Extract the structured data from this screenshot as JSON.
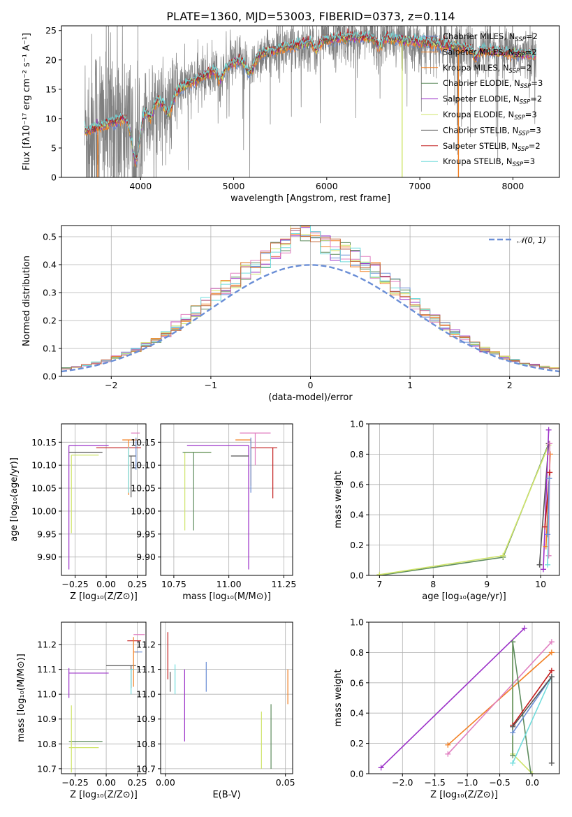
{
  "page": {
    "title": "PLATE=1360, MJD=53003, FIBERID=0373, z=0.114"
  },
  "colors": {
    "blue": "#6a8ed6",
    "orange": "#f28023",
    "gray": "#7f7f7f",
    "purple": "#9b30c8",
    "yellow": "#cfe46a",
    "pink": "#e07fc0",
    "cyan": "#70dcdc",
    "red": "#c21a1a",
    "green": "#5e8c5e",
    "darkgray": "#555555",
    "olive": "#b5d66b",
    "brown": "#c46a3b"
  },
  "chart_data": [
    {
      "id": "spectrum",
      "type": "line",
      "xlabel": "wavelength [Angstrom, rest frame]",
      "ylabel": "Flux [fλ10⁻¹⁷ erg cm⁻² s⁻¹ A⁻¹]",
      "xlim": [
        3150,
        8500
      ],
      "ylim": [
        0,
        25.8
      ],
      "xticks": [
        4000,
        5000,
        6000,
        7000,
        8000
      ],
      "yticks": [
        0,
        5,
        10,
        15,
        20,
        25
      ],
      "legend_position": "top-right",
      "data_range": [
        3400,
        8250
      ],
      "legend": [
        {
          "base": "Chabrier MILES, N",
          "sub": "SSP",
          "tail": "=2",
          "color": "#6a8ed6"
        },
        {
          "base": "Salpeter MILES, N",
          "sub": "SSP",
          "tail": "=2",
          "color": "#f28023"
        },
        {
          "base": "Kroupa MILES, N",
          "sub": "SSP",
          "tail": "=2",
          "color": "#f28023"
        },
        {
          "base": "Chabrier ELODIE, N",
          "sub": "SSP",
          "tail": "=3",
          "color": "#5e8c5e"
        },
        {
          "base": "Salpeter ELODIE, N",
          "sub": "SSP",
          "tail": "=2",
          "color": "#9b30c8"
        },
        {
          "base": "Kroupa ELODIE, N",
          "sub": "SSP",
          "tail": "=3",
          "color": "#cfe46a"
        },
        {
          "base": "Chabrier STELIB, N",
          "sub": "SSP",
          "tail": "=3",
          "color": "#555555"
        },
        {
          "base": "Salpeter STELIB, N",
          "sub": "SSP",
          "tail": "=2",
          "color": "#c21a1a"
        },
        {
          "base": "Kroupa STELIB, N",
          "sub": "SSP",
          "tail": "=3",
          "color": "#70dcdc"
        }
      ]
    },
    {
      "id": "residuals",
      "type": "line",
      "xlabel": "(data-model)/error",
      "ylabel": "Normed distribution",
      "xlim": [
        -2.5,
        2.5
      ],
      "ylim": [
        0,
        0.54
      ],
      "xticks": [
        -2,
        -1,
        0,
        1,
        2
      ],
      "yticks": [
        0.0,
        0.1,
        0.2,
        0.3,
        0.4,
        0.5
      ],
      "grid": true,
      "legend": [
        {
          "label": "𝒩(0, 1)",
          "color": "#6a8ed6",
          "style": "dashed"
        }
      ],
      "legend_position": "top-right",
      "hist_bins": [
        -2.5,
        2.5,
        0.1
      ],
      "hist_colors": [
        "#6a8ed6",
        "#f28023",
        "#5e8c5e",
        "#9b30c8",
        "#cfe46a",
        "#e07fc0",
        "#70dcdc",
        "#c46a3b"
      ]
    },
    {
      "id": "z-age",
      "type": "errorbar",
      "xlabel": "Z [log₁₀(Z/Z⊙)]",
      "ylabel": "age  [log₁₀(age/yr)]",
      "xlim": [
        -0.36,
        0.32
      ],
      "ylim": [
        9.86,
        10.19
      ],
      "xticks": [
        -0.25,
        0.0,
        0.25
      ],
      "yticks": [
        9.9,
        9.95,
        10.0,
        10.05,
        10.1,
        10.15
      ],
      "grid": true,
      "points": [
        {
          "x": -0.3,
          "y": 10.143,
          "xerr": [
            0.0,
            0.32
          ],
          "yerr": [
            0.27,
            0.0
          ],
          "color": "#9b30c8"
        },
        {
          "x": -0.3,
          "y": 10.128,
          "xerr": [
            0.0,
            0.27
          ],
          "yerr": [
            0.0,
            0.0
          ],
          "color": "#555555"
        },
        {
          "x": -0.28,
          "y": 10.122,
          "xerr": [
            0.0,
            0.22
          ],
          "yerr": [
            0.17,
            0.0
          ],
          "color": "#cfe46a"
        },
        {
          "x": 0.18,
          "y": 10.155,
          "xerr": [
            0.05,
            0.07
          ],
          "yerr": [
            0.12,
            0.0
          ],
          "color": "#f28023"
        },
        {
          "x": 0.22,
          "y": 10.17,
          "xerr": [
            0.02,
            0.05
          ],
          "yerr": [
            0.0,
            0.0
          ],
          "color": "#e07fc0"
        },
        {
          "x": 0.2,
          "y": 10.138,
          "xerr": [
            0.28,
            0.08
          ],
          "yerr": [
            0.0,
            0.0
          ],
          "color": "#c21a1a"
        },
        {
          "x": 0.2,
          "y": 10.12,
          "xerr": [
            0.02,
            0.04
          ],
          "yerr": [
            0.09,
            0.0
          ],
          "color": "#555555"
        },
        {
          "x": 0.18,
          "y": 10.14,
          "xerr": [
            0.0,
            0.0
          ],
          "yerr": [
            0.1,
            0.0
          ],
          "color": "#70dcdc"
        },
        {
          "x": 0.24,
          "y": 10.16,
          "xerr": [
            0.0,
            0.0
          ],
          "yerr": [
            0.07,
            0.0
          ],
          "color": "#6a8ed6"
        }
      ]
    },
    {
      "id": "mass-age",
      "type": "errorbar",
      "xlabel": "mass [log₁₀(M/M⊙)]",
      "ylabel": "",
      "xlim": [
        10.69,
        11.29
      ],
      "ylim": [
        9.86,
        10.19
      ],
      "xticks": [
        10.75,
        11.0,
        11.25
      ],
      "yticks": [
        9.9,
        9.95,
        10.0,
        10.05,
        10.1,
        10.15
      ],
      "grid": true,
      "points": [
        {
          "x": 11.09,
          "y": 10.143,
          "xerr": [
            0.28,
            0.0
          ],
          "yerr": [
            0.27,
            0.0
          ],
          "color": "#9b30c8"
        },
        {
          "x": 10.8,
          "y": 10.128,
          "xerr": [
            0.0,
            0.12
          ],
          "yerr": [
            0.17,
            0.0
          ],
          "color": "#cfe46a"
        },
        {
          "x": 10.84,
          "y": 10.128,
          "xerr": [
            0.05,
            0.08
          ],
          "yerr": [
            0.17,
            0.0
          ],
          "color": "#5e8c5e"
        },
        {
          "x": 11.1,
          "y": 10.155,
          "xerr": [
            0.07,
            0.0
          ],
          "yerr": [
            0.1,
            0.0
          ],
          "color": "#f28023"
        },
        {
          "x": 11.2,
          "y": 10.138,
          "xerr": [
            0.1,
            0.02
          ],
          "yerr": [
            0.11,
            0.0
          ],
          "color": "#c21a1a"
        },
        {
          "x": 11.05,
          "y": 10.12,
          "xerr": [
            0.04,
            0.04
          ],
          "yerr": [
            0.0,
            0.0
          ],
          "color": "#555555"
        },
        {
          "x": 11.12,
          "y": 10.17,
          "xerr": [
            0.07,
            0.07
          ],
          "yerr": [
            0.07,
            0.0
          ],
          "color": "#e07fc0"
        },
        {
          "x": 11.1,
          "y": 10.16,
          "xerr": [
            0.0,
            0.0
          ],
          "yerr": [
            0.12,
            0.0
          ],
          "color": "#6a8ed6"
        }
      ]
    },
    {
      "id": "age-weight",
      "type": "line",
      "xlabel": "age  [log₁₀(age/yr)]",
      "ylabel": "mass weight",
      "xlim": [
        6.8,
        10.35
      ],
      "ylim": [
        0.0,
        1.0
      ],
      "xticks": [
        7,
        8,
        9,
        10
      ],
      "yticks": [
        0.0,
        0.2,
        0.4,
        0.6,
        0.8,
        1.0
      ],
      "grid": true,
      "series": [
        {
          "color": "#5e8c5e",
          "x": [
            7.0,
            9.3,
            10.15
          ],
          "y": [
            0.0,
            0.12,
            0.87
          ]
        },
        {
          "color": "#cfe46a",
          "x": [
            7.0,
            9.3,
            10.15
          ],
          "y": [
            0.005,
            0.13,
            0.86
          ]
        },
        {
          "color": "#555555",
          "x": [
            9.98,
            10.15
          ],
          "y": [
            0.07,
            0.87
          ]
        },
        {
          "color": "#9b30c8",
          "x": [
            10.05,
            10.15
          ],
          "y": [
            0.04,
            0.96
          ]
        },
        {
          "color": "#f28023",
          "x": [
            10.1,
            10.18
          ],
          "y": [
            0.19,
            0.8
          ]
        },
        {
          "color": "#e07fc0",
          "x": [
            10.15,
            10.17
          ],
          "y": [
            0.13,
            0.87
          ]
        },
        {
          "color": "#c21a1a",
          "x": [
            10.08,
            10.17
          ],
          "y": [
            0.32,
            0.68
          ]
        },
        {
          "color": "#70dcdc",
          "x": [
            10.13,
            10.16
          ],
          "y": [
            0.07,
            0.64
          ]
        },
        {
          "color": "#6a8ed6",
          "x": [
            10.13,
            10.16
          ],
          "y": [
            0.27,
            0.64
          ]
        }
      ]
    },
    {
      "id": "z-mass",
      "type": "errorbar",
      "xlabel": "Z [log₁₀(Z/Z⊙)]",
      "ylabel": "mass [log₁₀(M/M⊙)]",
      "xlim": [
        -0.36,
        0.32
      ],
      "ylim": [
        10.68,
        11.29
      ],
      "xticks": [
        -0.25,
        0.0,
        0.25
      ],
      "yticks": [
        10.7,
        10.8,
        10.9,
        11.0,
        11.1,
        11.2
      ],
      "grid": true,
      "points": [
        {
          "x": -0.3,
          "y": 11.085,
          "xerr": [
            0.0,
            0.32
          ],
          "yerr": [
            0.1,
            0.02
          ],
          "color": "#9b30c8"
        },
        {
          "x": -0.3,
          "y": 10.81,
          "xerr": [
            0.0,
            0.27
          ],
          "yerr": [
            0.0,
            0.0
          ],
          "color": "#5e8c5e"
        },
        {
          "x": -0.28,
          "y": 10.785,
          "xerr": [
            0.02,
            0.22
          ],
          "yerr": [
            0.1,
            0.17
          ],
          "color": "#cfe46a"
        },
        {
          "x": 0.22,
          "y": 11.215,
          "xerr": [
            0.05,
            0.06
          ],
          "yerr": [
            0.0,
            0.0
          ],
          "color": "#c21a1a"
        },
        {
          "x": 0.2,
          "y": 11.115,
          "xerr": [
            0.2,
            0.04
          ],
          "yerr": [
            0.09,
            0.0
          ],
          "color": "#555555"
        },
        {
          "x": 0.22,
          "y": 11.17,
          "xerr": [
            0.0,
            0.04
          ],
          "yerr": [
            0.14,
            0.06
          ],
          "color": "#f28023"
        },
        {
          "x": 0.26,
          "y": 11.24,
          "xerr": [
            0.04,
            0.05
          ],
          "yerr": [
            0.0,
            0.0
          ],
          "color": "#e07fc0"
        },
        {
          "x": 0.2,
          "y": 11.1,
          "xerr": [
            0.0,
            0.02
          ],
          "yerr": [
            0.1,
            0.0
          ],
          "color": "#70dcdc"
        },
        {
          "x": 0.25,
          "y": 11.17,
          "xerr": [
            0.02,
            0.04
          ],
          "yerr": [
            0.0,
            0.0
          ],
          "color": "#6a8ed6"
        }
      ]
    },
    {
      "id": "ebv-mass",
      "type": "errorbar",
      "xlabel": "E(B-V)",
      "ylabel": "",
      "xlim": [
        -0.002,
        0.053
      ],
      "ylim": [
        10.68,
        11.29
      ],
      "xticks": [
        0.0,
        0.05
      ],
      "yticks": [
        10.7,
        10.8,
        10.9,
        11.0,
        11.1,
        11.2
      ],
      "grid": true,
      "points": [
        {
          "x": 0.001,
          "y": 11.18,
          "xerr": [
            0.0,
            0.0
          ],
          "yerr": [
            0.12,
            0.07
          ],
          "color": "#c21a1a"
        },
        {
          "x": 0.002,
          "y": 11.05,
          "xerr": [
            0.0,
            0.0
          ],
          "yerr": [
            0.04,
            0.04
          ],
          "color": "#555555"
        },
        {
          "x": 0.004,
          "y": 11.06,
          "xerr": [
            0.0,
            0.0
          ],
          "yerr": [
            0.06,
            0.06
          ],
          "color": "#70dcdc"
        },
        {
          "x": 0.008,
          "y": 10.95,
          "xerr": [
            0.0,
            0.0
          ],
          "yerr": [
            0.14,
            0.15
          ],
          "color": "#9b30c8"
        },
        {
          "x": 0.017,
          "y": 11.07,
          "xerr": [
            0.0,
            0.0
          ],
          "yerr": [
            0.06,
            0.06
          ],
          "color": "#6a8ed6"
        },
        {
          "x": 0.04,
          "y": 10.8,
          "xerr": [
            0.0,
            0.0
          ],
          "yerr": [
            0.1,
            0.13
          ],
          "color": "#cfe46a"
        },
        {
          "x": 0.044,
          "y": 10.84,
          "xerr": [
            0.0,
            0.0
          ],
          "yerr": [
            0.14,
            0.12
          ],
          "color": "#5e8c5e"
        },
        {
          "x": 0.051,
          "y": 11.03,
          "xerr": [
            0.0,
            0.0
          ],
          "yerr": [
            0.07,
            0.07
          ],
          "color": "#f28023"
        }
      ]
    },
    {
      "id": "z-weight",
      "type": "line",
      "xlabel": "Z [log₁₀(Z/Z⊙)]",
      "ylabel": "mass weight",
      "xlim": [
        -2.52,
        0.42
      ],
      "ylim": [
        0.0,
        1.0
      ],
      "xticks": [
        -2.0,
        -1.5,
        -1.0,
        -0.5,
        0.0
      ],
      "yticks": [
        0.0,
        0.2,
        0.4,
        0.6,
        0.8,
        1.0
      ],
      "grid": true,
      "series": [
        {
          "color": "#9b30c8",
          "x": [
            -2.33,
            -0.12
          ],
          "y": [
            0.04,
            0.96
          ]
        },
        {
          "color": "#f28023",
          "x": [
            -1.3,
            0.3
          ],
          "y": [
            0.19,
            0.8
          ]
        },
        {
          "color": "#e07fc0",
          "x": [
            -1.3,
            0.3
          ],
          "y": [
            0.13,
            0.87
          ]
        },
        {
          "color": "#cfe46a",
          "x": [
            -0.3,
            -0.3,
            0.0
          ],
          "y": [
            0.87,
            0.13,
            0.0
          ]
        },
        {
          "color": "#5e8c5e",
          "x": [
            -0.3,
            -0.3,
            -0.02
          ],
          "y": [
            0.12,
            0.87,
            0.0
          ]
        },
        {
          "color": "#c21a1a",
          "x": [
            -0.3,
            0.3
          ],
          "y": [
            0.32,
            0.68
          ]
        },
        {
          "color": "#70dcdc",
          "x": [
            -0.3,
            0.3
          ],
          "y": [
            0.07,
            0.64
          ]
        },
        {
          "color": "#6a8ed6",
          "x": [
            -0.3,
            0.3
          ],
          "y": [
            0.27,
            0.64
          ]
        },
        {
          "color": "#555555",
          "x": [
            -0.3,
            0.3,
            0.3
          ],
          "y": [
            0.31,
            0.64,
            0.07
          ]
        }
      ]
    }
  ]
}
